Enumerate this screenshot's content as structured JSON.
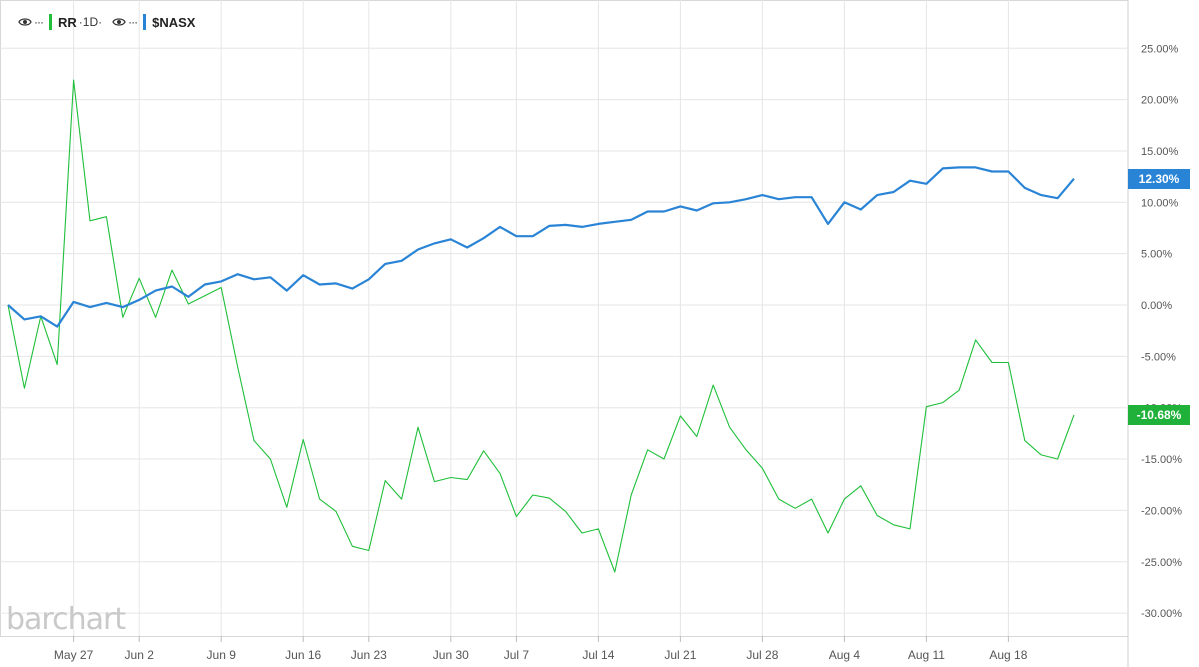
{
  "legend": {
    "series1": {
      "symbol": "RR",
      "interval": "·1D·",
      "dots": "···",
      "icon": "eye-icon"
    },
    "series2": {
      "symbol": "$NASX",
      "dots": "···",
      "icon": "eye-icon"
    }
  },
  "watermark": "barchart",
  "tags": {
    "nasx_last": "12.30%",
    "rr_last": "-10.68%"
  },
  "colors": {
    "rr": "#1fbf3a",
    "nasx": "#2a84d6",
    "grid": "#e6e6e6",
    "rr_tag": "#20b13a",
    "nasx_tag": "#2a84d6"
  },
  "chart_data": {
    "type": "line",
    "title": "",
    "xlabel": "",
    "ylabel": "",
    "ylim": [
      -31,
      27
    ],
    "y_ticks": [
      {
        "value": 25,
        "label": "25.00%"
      },
      {
        "value": 20,
        "label": "20.00%"
      },
      {
        "value": 15,
        "label": "15.00%"
      },
      {
        "value": 10,
        "label": "10.00%"
      },
      {
        "value": 5,
        "label": "5.00%"
      },
      {
        "value": 0,
        "label": "0.00%"
      },
      {
        "value": -5,
        "label": "-5.00%"
      },
      {
        "value": -10,
        "label": "-10.00%"
      },
      {
        "value": -15,
        "label": "-15.00%"
      },
      {
        "value": -20,
        "label": "-20.00%"
      },
      {
        "value": -25,
        "label": "-25.00%"
      },
      {
        "value": -30,
        "label": "-30.00%"
      }
    ],
    "x_ticks": [
      {
        "index": 4,
        "label": "May 27"
      },
      {
        "index": 8,
        "label": "Jun 2"
      },
      {
        "index": 13,
        "label": "Jun 9"
      },
      {
        "index": 18,
        "label": "Jun 16"
      },
      {
        "index": 22,
        "label": "Jun 23"
      },
      {
        "index": 27,
        "label": "Jun 30"
      },
      {
        "index": 31,
        "label": "Jul 7"
      },
      {
        "index": 36,
        "label": "Jul 14"
      },
      {
        "index": 41,
        "label": "Jul 21"
      },
      {
        "index": 46,
        "label": "Jul 28"
      },
      {
        "index": 51,
        "label": "Aug 4"
      },
      {
        "index": 56,
        "label": "Aug 11"
      },
      {
        "index": 61,
        "label": "Aug 18"
      }
    ],
    "grid": true,
    "series": [
      {
        "name": "RR",
        "values": [
          0.0,
          -8.1,
          -1.1,
          -5.8,
          21.9,
          8.2,
          8.6,
          -1.2,
          2.6,
          -1.2,
          3.4,
          0.1,
          0.9,
          1.7,
          -6.0,
          -13.2,
          -15.0,
          -19.7,
          -13.1,
          -18.9,
          -20.1,
          -23.5,
          -23.9,
          -17.1,
          -18.9,
          -11.9,
          -17.2,
          -16.8,
          -17.0,
          -14.2,
          -16.4,
          -20.6,
          -18.5,
          -18.8,
          -20.1,
          -22.2,
          -21.8,
          -26.0,
          -18.5,
          -14.1,
          -15.0,
          -10.8,
          -12.8,
          -7.8,
          -11.9,
          -14.1,
          -15.9,
          -18.9,
          -19.8,
          -18.9,
          -22.2,
          -18.9,
          -17.6,
          -20.5,
          -21.4,
          -21.8,
          -9.9,
          -9.5,
          -8.3,
          -3.4,
          -5.6,
          -5.6,
          -13.2,
          -14.6,
          -15.0,
          -10.7
        ]
      },
      {
        "name": "$NASX",
        "values": [
          0.0,
          -1.4,
          -1.1,
          -2.1,
          0.3,
          -0.2,
          0.2,
          -0.2,
          0.5,
          1.4,
          1.8,
          0.8,
          2.0,
          2.3,
          3.0,
          2.5,
          2.7,
          1.4,
          2.9,
          2.0,
          2.1,
          1.6,
          2.5,
          4.0,
          4.3,
          5.4,
          6.0,
          6.4,
          5.6,
          6.5,
          7.6,
          6.7,
          6.7,
          7.7,
          7.8,
          7.6,
          7.9,
          8.1,
          8.3,
          9.1,
          9.1,
          9.6,
          9.2,
          9.9,
          10.0,
          10.3,
          10.7,
          10.3,
          10.5,
          10.5,
          7.9,
          10.0,
          9.3,
          10.7,
          11.0,
          12.1,
          11.8,
          13.3,
          13.4,
          13.4,
          13.0,
          13.0,
          11.4,
          10.7,
          10.4,
          12.3
        ]
      }
    ]
  }
}
